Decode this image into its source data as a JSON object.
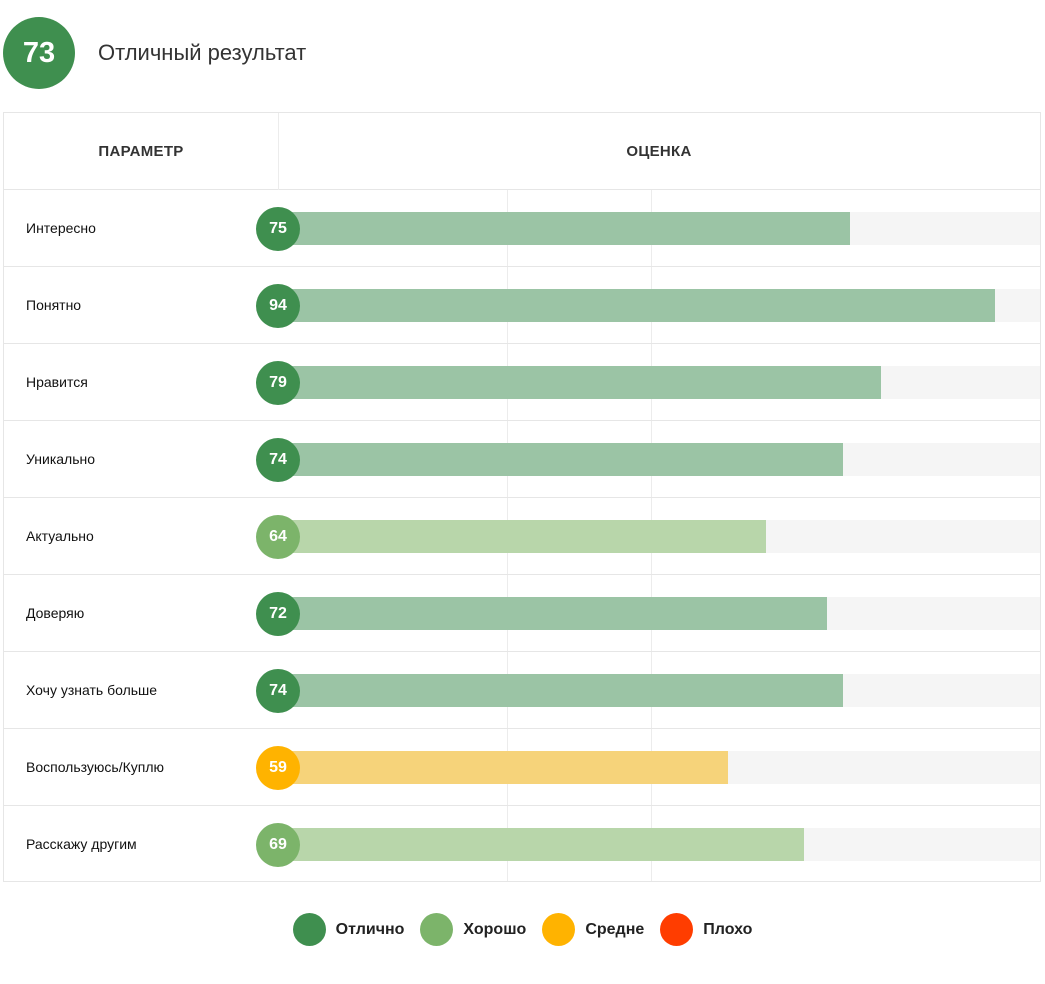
{
  "header": {
    "total_score": "73",
    "result_label": "Отличный результат"
  },
  "table": {
    "col_param": "ПАРАМЕТР",
    "col_score": "ОЦЕНКА"
  },
  "colors": {
    "excellent": "#3f8f4f",
    "excellent_bar": "#9bc4a5",
    "good": "#7cb46a",
    "good_bar": "#b8d6aa",
    "average": "#ffb300",
    "average_bar": "#f6d37a",
    "bad": "#ff3d00",
    "track": "#f5f5f5"
  },
  "chart_data": {
    "type": "bar",
    "orientation": "horizontal",
    "title": "",
    "xlabel": "ОЦЕНКА",
    "ylabel": "ПАРАМЕТР",
    "xlim": [
      0,
      100
    ],
    "grid": true,
    "categories": [
      "Интересно",
      "Понятно",
      "Нравится",
      "Уникально",
      "Актуально",
      "Доверяю",
      "Хочу узнать больше",
      "Воспользуюсь/Куплю",
      "Расскажу другим"
    ],
    "values": [
      75,
      94,
      79,
      74,
      64,
      72,
      74,
      59,
      69
    ],
    "ratings": [
      "excellent",
      "excellent",
      "excellent",
      "excellent",
      "good",
      "excellent",
      "excellent",
      "average",
      "good"
    ],
    "data_labels": [
      "75",
      "94",
      "79",
      "74",
      "64",
      "72",
      "74",
      "59",
      "69"
    ],
    "legend_position": "bottom-center"
  },
  "legend": [
    {
      "key": "excellent",
      "label": "Отлично"
    },
    {
      "key": "good",
      "label": "Хорошо"
    },
    {
      "key": "average",
      "label": "Средне"
    },
    {
      "key": "bad",
      "label": "Плохо"
    }
  ]
}
